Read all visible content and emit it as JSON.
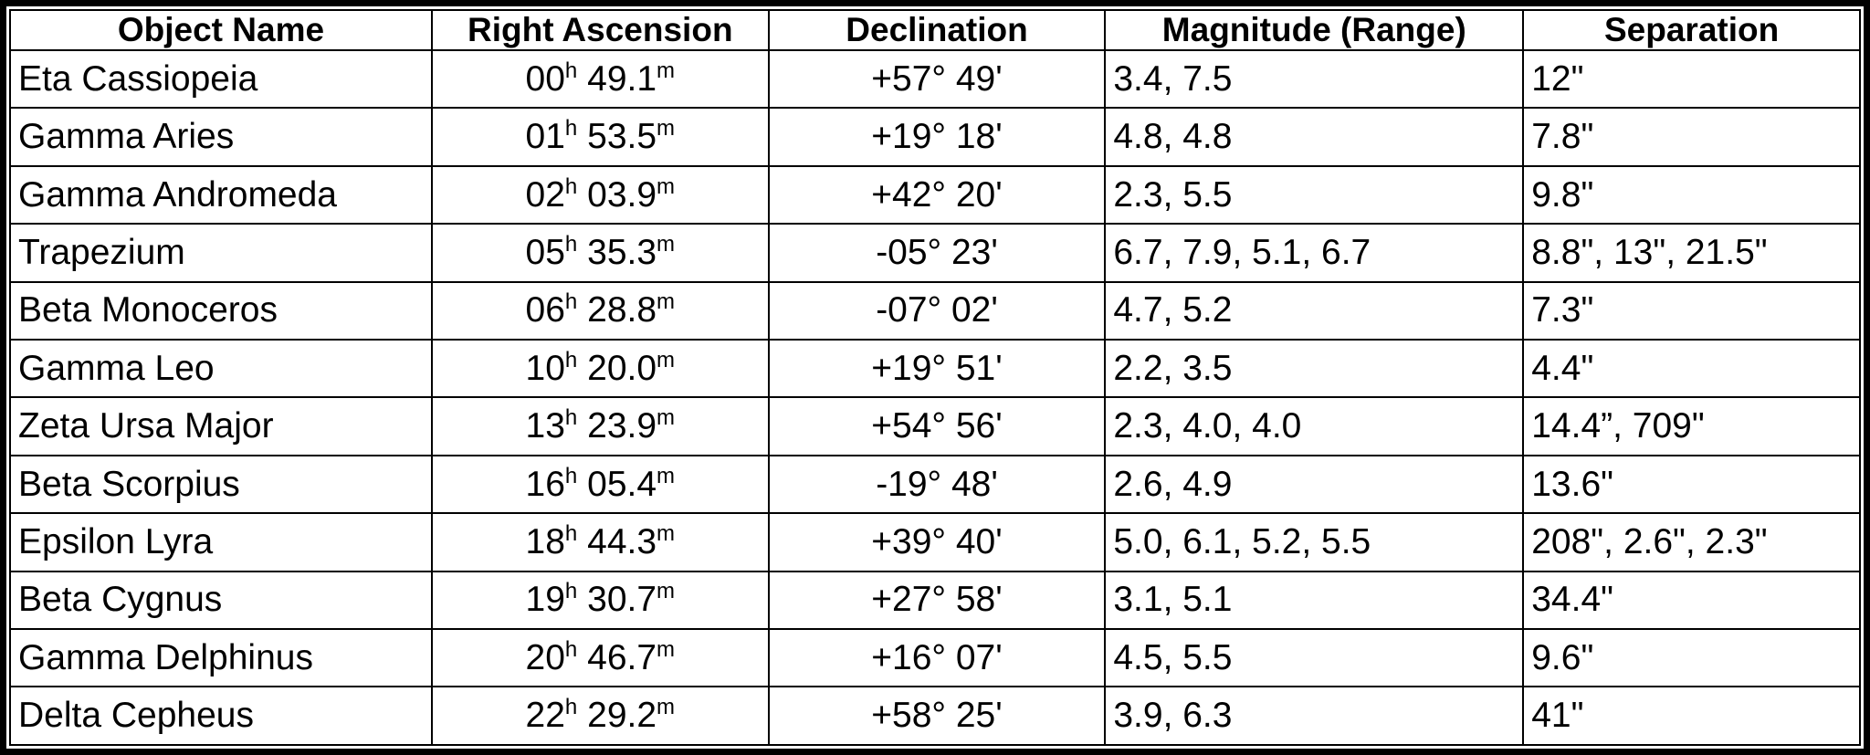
{
  "table": {
    "columns": [
      "Object Name",
      "Right Ascension",
      "Declination",
      "Magnitude (Range)",
      "Separation"
    ],
    "rows": [
      {
        "name": "Eta Cassiopeia",
        "ra": {
          "hours": "00",
          "hour_unit": "h",
          "minutes": "49.1",
          "minute_unit": "m"
        },
        "dec": "+57° 49'",
        "mag": "3.4, 7.5",
        "sep": "12\""
      },
      {
        "name": "Gamma Aries",
        "ra": {
          "hours": "01",
          "hour_unit": "h",
          "minutes": "53.5",
          "minute_unit": "m"
        },
        "dec": "+19° 18'",
        "mag": "4.8, 4.8",
        "sep": "7.8\""
      },
      {
        "name": "Gamma Andromeda",
        "ra": {
          "hours": "02",
          "hour_unit": "h",
          "minutes": "03.9",
          "minute_unit": "m"
        },
        "dec": "+42° 20'",
        "mag": "2.3, 5.5",
        "sep": "9.8\""
      },
      {
        "name": "Trapezium",
        "ra": {
          "hours": "05",
          "hour_unit": "h",
          "minutes": "35.3",
          "minute_unit": "m"
        },
        "dec": "-05° 23'",
        "mag": "6.7, 7.9, 5.1, 6.7",
        "sep": "8.8\", 13\", 21.5\""
      },
      {
        "name": "Beta Monoceros",
        "ra": {
          "hours": "06",
          "hour_unit": "h",
          "minutes": "28.8",
          "minute_unit": "m"
        },
        "dec": "-07° 02'",
        "mag": "4.7, 5.2",
        "sep": "7.3\""
      },
      {
        "name": "Gamma Leo",
        "ra": {
          "hours": "10",
          "hour_unit": "h",
          "minutes": "20.0",
          "minute_unit": "m"
        },
        "dec": "+19° 51'",
        "mag": "2.2, 3.5",
        "sep": "4.4\""
      },
      {
        "name": "Zeta Ursa Major",
        "ra": {
          "hours": "13",
          "hour_unit": "h",
          "minutes": "23.9",
          "minute_unit": "m"
        },
        "dec": "+54° 56'",
        "mag": "2.3, 4.0, 4.0",
        "sep": "14.4”, 709\""
      },
      {
        "name": "Beta Scorpius",
        "ra": {
          "hours": "16",
          "hour_unit": "h",
          "minutes": "05.4",
          "minute_unit": "m"
        },
        "dec": "-19° 48'",
        "mag": "2.6, 4.9",
        "sep": "13.6\""
      },
      {
        "name": "Epsilon Lyra",
        "ra": {
          "hours": "18",
          "hour_unit": "h",
          "minutes": "44.3",
          "minute_unit": "m"
        },
        "dec": "+39° 40'",
        "mag": "5.0, 6.1, 5.2, 5.5",
        "sep": "208\", 2.6\", 2.3\""
      },
      {
        "name": "Beta Cygnus",
        "ra": {
          "hours": "19",
          "hour_unit": "h",
          "minutes": "30.7",
          "minute_unit": "m"
        },
        "dec": "+27° 58'",
        "mag": "3.1, 5.1",
        "sep": "34.4\""
      },
      {
        "name": "Gamma Delphinus",
        "ra": {
          "hours": "20",
          "hour_unit": "h",
          "minutes": "46.7",
          "minute_unit": "m"
        },
        "dec": "+16° 07'",
        "mag": "4.5, 5.5",
        "sep": "9.6\""
      },
      {
        "name": "Delta Cepheus",
        "ra": {
          "hours": "22",
          "hour_unit": "h",
          "minutes": "29.2",
          "minute_unit": "m"
        },
        "dec": "+58° 25'",
        "mag": "3.9, 6.3",
        "sep": "41\""
      }
    ]
  }
}
